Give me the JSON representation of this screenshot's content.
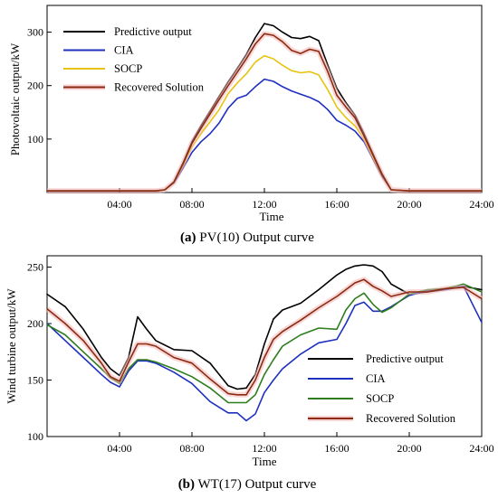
{
  "chart_data": [
    {
      "type": "line",
      "caption_label": "(a)",
      "caption_text": " PV(10) Output curve",
      "xlabel": "Time",
      "ylabel": "Photovoltaic output/kW",
      "xlim": [
        0,
        24
      ],
      "ylim": [
        0,
        350
      ],
      "xticks": [
        4,
        8,
        12,
        16,
        20,
        24
      ],
      "xtick_labels": [
        "04:00",
        "08:00",
        "12:00",
        "16:00",
        "20:00",
        "24:00"
      ],
      "yticks": [
        100,
        200,
        300
      ],
      "ytick_labels": [
        "100",
        "200",
        "300"
      ],
      "legend_position": "top-left",
      "series": [
        {
          "name": "Predictive output",
          "color": "#000000",
          "x": [
            0,
            5,
            6,
            6.5,
            7,
            7.5,
            8,
            8.5,
            9,
            9.5,
            10,
            10.5,
            11,
            11.5,
            12,
            12.5,
            13,
            13.5,
            14,
            14.5,
            15,
            15.5,
            16,
            16.5,
            17,
            17.5,
            18,
            18.5,
            19,
            20,
            24
          ],
          "y": [
            3,
            3,
            3,
            5,
            20,
            55,
            95,
            125,
            152,
            180,
            207,
            232,
            258,
            290,
            316,
            312,
            300,
            290,
            288,
            292,
            284,
            238,
            195,
            168,
            145,
            110,
            72,
            35,
            5,
            3,
            3
          ]
        },
        {
          "name": "CIA",
          "color": "#1f2fbf",
          "x": [
            0,
            5,
            6,
            6.5,
            7,
            7.5,
            8,
            8.5,
            9,
            9.5,
            10,
            10.5,
            11,
            11.5,
            12,
            12.5,
            13,
            13.5,
            14,
            14.5,
            15,
            15.5,
            16,
            16.5,
            17,
            17.5,
            18,
            18.5,
            19,
            20,
            24
          ],
          "y": [
            3,
            3,
            3,
            5,
            18,
            45,
            75,
            95,
            110,
            130,
            158,
            176,
            182,
            198,
            212,
            208,
            198,
            190,
            184,
            178,
            170,
            155,
            135,
            126,
            115,
            95,
            62,
            30,
            5,
            3,
            3
          ]
        },
        {
          "name": "SOCP",
          "color": "#e8c410",
          "x": [
            0,
            5,
            6,
            6.5,
            7,
            7.5,
            8,
            8.5,
            9,
            9.5,
            10,
            10.5,
            11,
            11.5,
            12,
            12.5,
            13,
            13.5,
            14,
            14.5,
            15,
            15.5,
            16,
            16.5,
            17,
            17.5,
            18,
            18.5,
            19,
            20,
            24
          ],
          "y": [
            3,
            3,
            3,
            5,
            19,
            50,
            85,
            110,
            132,
            155,
            185,
            205,
            222,
            244,
            256,
            250,
            238,
            228,
            224,
            226,
            220,
            192,
            160,
            140,
            125,
            100,
            66,
            32,
            5,
            3,
            3
          ]
        },
        {
          "name": "Recovered Solution",
          "color": "#8b2a10",
          "x": [
            0,
            5,
            6,
            6.5,
            7,
            7.5,
            8,
            8.5,
            9,
            9.5,
            10,
            10.5,
            11,
            11.5,
            12,
            12.5,
            13,
            13.5,
            14,
            14.5,
            15,
            15.5,
            16,
            16.5,
            17,
            17.5,
            18,
            18.5,
            19,
            20,
            24
          ],
          "y": [
            3,
            3,
            3,
            5,
            19,
            53,
            92,
            120,
            147,
            174,
            200,
            225,
            250,
            278,
            297,
            294,
            282,
            266,
            260,
            268,
            264,
            226,
            182,
            160,
            140,
            106,
            70,
            33,
            5,
            3,
            3
          ]
        }
      ]
    },
    {
      "type": "line",
      "caption_label": "(b)",
      "caption_text": " WT(17) Output curve",
      "xlabel": "Time",
      "ylabel": "Wind turbine output/kW",
      "xlim": [
        0,
        24
      ],
      "ylim": [
        100,
        260
      ],
      "xticks": [
        4,
        8,
        12,
        16,
        20,
        24
      ],
      "xtick_labels": [
        "04:00",
        "08:00",
        "12:00",
        "16:00",
        "20:00",
        "24:00"
      ],
      "yticks": [
        100,
        150,
        200,
        250
      ],
      "ytick_labels": [
        "100",
        "150",
        "200",
        "250"
      ],
      "legend_position": "bottom-right",
      "series": [
        {
          "name": "Predictive output",
          "color": "#000000",
          "x": [
            0,
            1,
            2,
            3,
            3.5,
            4,
            4.5,
            5,
            5.5,
            6,
            7,
            8,
            9,
            10,
            10.5,
            11,
            11.5,
            12,
            12.5,
            13,
            14,
            15,
            16,
            16.5,
            17,
            17.5,
            18,
            18.5,
            19,
            20,
            21,
            22,
            23,
            24
          ],
          "y": [
            226,
            215,
            195,
            170,
            160,
            154,
            170,
            206,
            195,
            185,
            177,
            176,
            165,
            145,
            142,
            143,
            155,
            182,
            204,
            212,
            218,
            230,
            243,
            248,
            251,
            252,
            251,
            246,
            235,
            226,
            228,
            230,
            233,
            230
          ]
        },
        {
          "name": "CIA",
          "color": "#1f2fbf",
          "x": [
            0,
            1,
            2,
            3,
            3.5,
            4,
            4.5,
            5,
            5.5,
            6,
            7,
            8,
            9,
            10,
            10.5,
            11,
            11.5,
            12,
            12.5,
            13,
            14,
            15,
            16,
            16.5,
            17,
            17.5,
            18,
            18.5,
            19,
            20,
            21,
            22,
            23,
            24
          ],
          "y": [
            200,
            185,
            170,
            155,
            148,
            144,
            158,
            167,
            167,
            165,
            157,
            147,
            131,
            121,
            121,
            114,
            120,
            139,
            150,
            160,
            173,
            183,
            186,
            200,
            216,
            219,
            211,
            211,
            215,
            225,
            229,
            230,
            233,
            201
          ]
        },
        {
          "name": "SOCP",
          "color": "#2e7d1e",
          "x": [
            0,
            1,
            2,
            3,
            3.5,
            4,
            4.5,
            5,
            5.5,
            6,
            7,
            8,
            9,
            10,
            10.5,
            11,
            11.5,
            12,
            12.5,
            13,
            14,
            15,
            16,
            16.5,
            17,
            17.5,
            18,
            18.5,
            19,
            20,
            21,
            22,
            23,
            24
          ],
          "y": [
            199,
            190,
            175,
            160,
            152,
            147,
            160,
            168,
            168,
            166,
            160,
            153,
            143,
            130,
            130,
            130,
            137,
            155,
            168,
            180,
            190,
            196,
            195,
            212,
            222,
            227,
            217,
            210,
            214,
            226,
            230,
            231,
            235,
            228
          ]
        },
        {
          "name": "Recovered Solution",
          "color": "#8b2a10",
          "x": [
            0,
            1,
            2,
            3,
            3.5,
            4,
            4.5,
            5,
            5.5,
            6,
            7,
            8,
            9,
            10,
            10.5,
            11,
            11.5,
            12,
            12.5,
            13,
            14,
            15,
            16,
            16.5,
            17,
            17.5,
            18,
            18.5,
            19,
            20,
            21,
            22,
            23,
            24
          ],
          "y": [
            213,
            200,
            185,
            165,
            153,
            149,
            166,
            182,
            182,
            180,
            170,
            165,
            151,
            138,
            137,
            137,
            150,
            170,
            186,
            193,
            203,
            214,
            224,
            230,
            236,
            239,
            233,
            229,
            224,
            228,
            228,
            231,
            232,
            222
          ]
        }
      ]
    }
  ]
}
